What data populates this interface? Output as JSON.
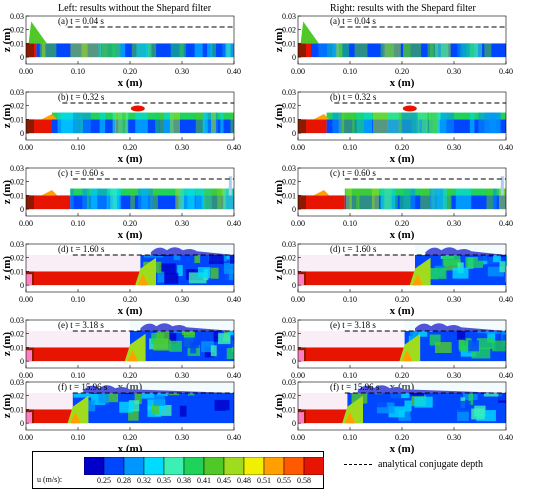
{
  "headers": {
    "left": "Left: results without the Shepard filter",
    "right": "Right: results with the Shepard filter"
  },
  "axes": {
    "xlabel": "x (m)",
    "ylabel": "z (m)",
    "xticks": [
      "0.00",
      "0.10",
      "0.20",
      "0.30",
      "0.40"
    ],
    "yticks": [
      "0.03",
      "0.02",
      "0.01",
      "0"
    ],
    "xlim": [
      0,
      0.4
    ],
    "ylim": [
      -0.005,
      0.03
    ]
  },
  "reference": {
    "label": "analytical conjugate depth",
    "depth_m": 0.022
  },
  "panels": [
    {
      "id": "a",
      "label": "(a) t = 0.04 s",
      "jump_x": 0.02,
      "ref_start_x": 0.08
    },
    {
      "id": "b",
      "label": "(b) t = 0.32 s",
      "jump_x": 0.05,
      "ref_start_x": 0.07
    },
    {
      "id": "c",
      "label": "(c) t = 0.60 s",
      "jump_x": 0.085,
      "ref_start_x": 0.09
    },
    {
      "id": "d",
      "label": "(d) t = 1.60 s",
      "jump_x": 0.22,
      "ref_start_x": 0.09
    },
    {
      "id": "e",
      "label": "(e) t = 3.18 s",
      "jump_x": 0.2,
      "ref_start_x": 0.09
    },
    {
      "id": "f",
      "label": "(f) t = 15.96 s",
      "jump_x": 0.09,
      "ref_start_x": 0.09
    }
  ],
  "colorbar": {
    "title": "u (m/s):",
    "values": [
      "0.25",
      "0.28",
      "0.32",
      "0.35",
      "0.38",
      "0.41",
      "0.45",
      "0.48",
      "0.51",
      "0.55",
      "0.58"
    ],
    "colors": [
      "#0000c8",
      "#0046ff",
      "#0096ff",
      "#00dcff",
      "#3cf0b4",
      "#1ed25a",
      "#50c828",
      "#a0dc1e",
      "#f0f000",
      "#ffa000",
      "#ff5a00",
      "#e61400"
    ]
  }
}
